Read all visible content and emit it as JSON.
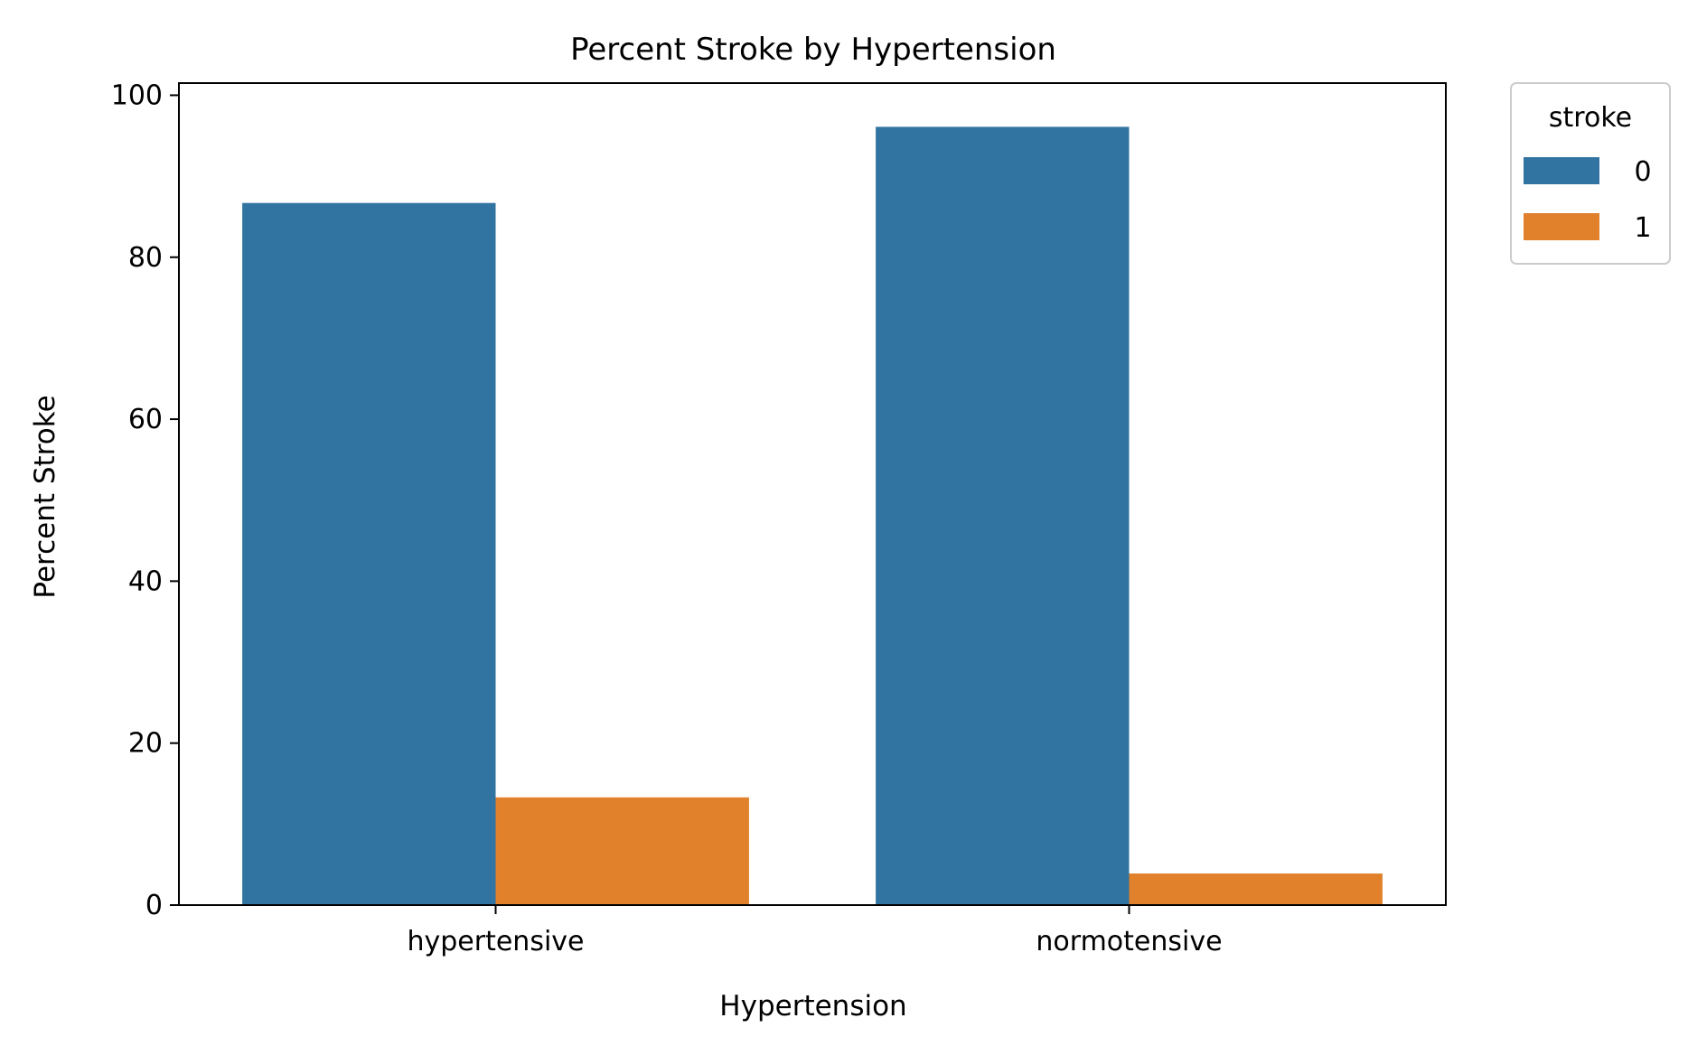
{
  "chart_data": {
    "type": "bar",
    "title": "Percent Stroke by Hypertension",
    "xlabel": "Hypertension",
    "ylabel": "Percent Stroke",
    "categories": [
      "hypertensive",
      "normotensive"
    ],
    "series": [
      {
        "name": "0",
        "color": "#3274a1",
        "values": [
          86.7,
          96.1
        ]
      },
      {
        "name": "1",
        "color": "#e1812c",
        "values": [
          13.3,
          3.9
        ]
      }
    ],
    "ylim": [
      0,
      101.5
    ],
    "yticks": [
      0,
      20,
      40,
      60,
      80,
      100
    ],
    "grid": false,
    "legend": {
      "title": "stroke",
      "placement": "outside-top-right"
    }
  }
}
